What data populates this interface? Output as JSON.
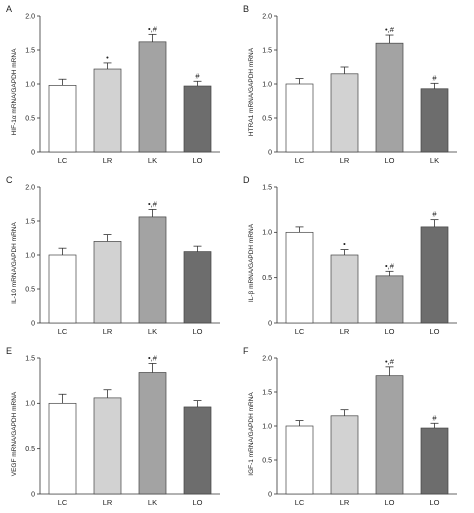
{
  "chart_data": [
    {
      "panel": "A",
      "type": "bar",
      "categories": [
        "LC",
        "LR",
        "LK",
        "LO"
      ],
      "values": [
        0.98,
        1.22,
        1.62,
        0.97
      ],
      "errors": [
        0.09,
        0.09,
        0.11,
        0.07
      ],
      "annotations": [
        "",
        "•",
        "•,#",
        "#"
      ],
      "ylabel": "HIF-1α mRNA/GAPDH mRNA",
      "ylim": [
        0,
        2.0
      ],
      "yticks": [
        "0",
        "0.5",
        "1.0",
        "1.5",
        "2.0"
      ],
      "colors": [
        "#ffffff",
        "#d2d2d2",
        "#a3a3a3",
        "#6d6d6d"
      ]
    },
    {
      "panel": "B",
      "type": "bar",
      "categories": [
        "LC",
        "LR",
        "LO",
        "LK"
      ],
      "values": [
        1.0,
        1.15,
        1.6,
        0.93
      ],
      "errors": [
        0.08,
        0.1,
        0.12,
        0.08
      ],
      "annotations": [
        "",
        "",
        "•,#",
        "#"
      ],
      "ylabel": "HTRA1 mRNA/GAPDH mRNA",
      "ylim": [
        0,
        2.0
      ],
      "yticks": [
        "0",
        "0.5",
        "1.0",
        "1.5",
        "2.0"
      ],
      "colors": [
        "#ffffff",
        "#d2d2d2",
        "#a3a3a3",
        "#6d6d6d"
      ]
    },
    {
      "panel": "C",
      "type": "bar",
      "categories": [
        "LC",
        "LR",
        "LK",
        "LO"
      ],
      "values": [
        1.0,
        1.2,
        1.56,
        1.05
      ],
      "errors": [
        0.1,
        0.1,
        0.11,
        0.08
      ],
      "annotations": [
        "",
        "",
        "•,#",
        ""
      ],
      "ylabel": "IL-10 mRNA/GAPDH mRNA",
      "ylim": [
        0,
        2.0
      ],
      "yticks": [
        "0",
        "0.5",
        "1.0",
        "1.5",
        "2.0"
      ],
      "colors": [
        "#ffffff",
        "#d2d2d2",
        "#a3a3a3",
        "#6d6d6d"
      ]
    },
    {
      "panel": "D",
      "type": "bar",
      "categories": [
        "LC",
        "LR",
        "LO",
        "LO"
      ],
      "values": [
        1.0,
        0.75,
        0.52,
        1.06
      ],
      "errors": [
        0.06,
        0.06,
        0.05,
        0.08
      ],
      "annotations": [
        "",
        "•",
        "•,#",
        "#"
      ],
      "ylabel": "IL-β mRNA/GAPDH mRNA",
      "ylim": [
        0,
        1.5
      ],
      "yticks": [
        "0",
        "0.5",
        "1.0",
        "1.5"
      ],
      "colors": [
        "#ffffff",
        "#d2d2d2",
        "#a3a3a3",
        "#6d6d6d"
      ]
    },
    {
      "panel": "E",
      "type": "bar",
      "categories": [
        "LC",
        "LR",
        "LK",
        "LO"
      ],
      "values": [
        1.0,
        1.06,
        1.34,
        0.96
      ],
      "errors": [
        0.1,
        0.09,
        0.1,
        0.07
      ],
      "annotations": [
        "",
        "",
        "•,#",
        ""
      ],
      "ylabel": "VEGF mRNA/GAPDH mRNA",
      "ylim": [
        0,
        1.5
      ],
      "yticks": [
        "0",
        "0.5",
        "1.0",
        "1.5"
      ],
      "colors": [
        "#ffffff",
        "#d2d2d2",
        "#a3a3a3",
        "#6d6d6d"
      ]
    },
    {
      "panel": "F",
      "type": "bar",
      "categories": [
        "LC",
        "LR",
        "LO",
        "LO"
      ],
      "values": [
        1.0,
        1.15,
        1.74,
        0.97
      ],
      "errors": [
        0.08,
        0.09,
        0.13,
        0.07
      ],
      "annotations": [
        "",
        "",
        "•,#",
        "#"
      ],
      "ylabel": "IGF-1 mRNA/GAPDH mRNA",
      "ylim": [
        0,
        2.0
      ],
      "yticks": [
        "0",
        "0.5",
        "1.0",
        "1.5",
        "2.0"
      ],
      "colors": [
        "#ffffff",
        "#d2d2d2",
        "#a3a3a3",
        "#6d6d6d"
      ]
    }
  ]
}
